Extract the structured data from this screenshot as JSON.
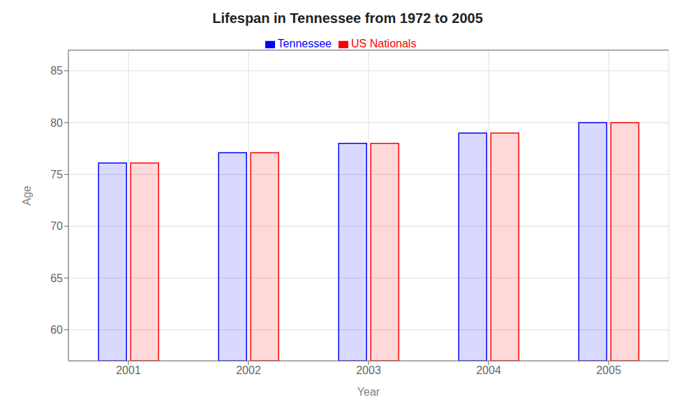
{
  "chart_data": {
    "type": "bar",
    "title": "Lifespan in Tennessee from 1972 to 2005",
    "x_label": "Year",
    "y_label": "Age",
    "categories": [
      "2001",
      "2002",
      "2003",
      "2004",
      "2005"
    ],
    "series": [
      {
        "name": "Tennessee",
        "color": "#0000ff",
        "values": [
          76.1,
          77.1,
          78.0,
          79.0,
          80.0
        ]
      },
      {
        "name": "US Nationals",
        "color": "#ff0000",
        "values": [
          76.1,
          77.1,
          78.0,
          79.0,
          80.0
        ]
      }
    ],
    "ylim": [
      57,
      87
    ],
    "yticks": [
      60,
      65,
      70,
      75,
      80,
      85
    ],
    "grid": true,
    "legend": "top"
  }
}
